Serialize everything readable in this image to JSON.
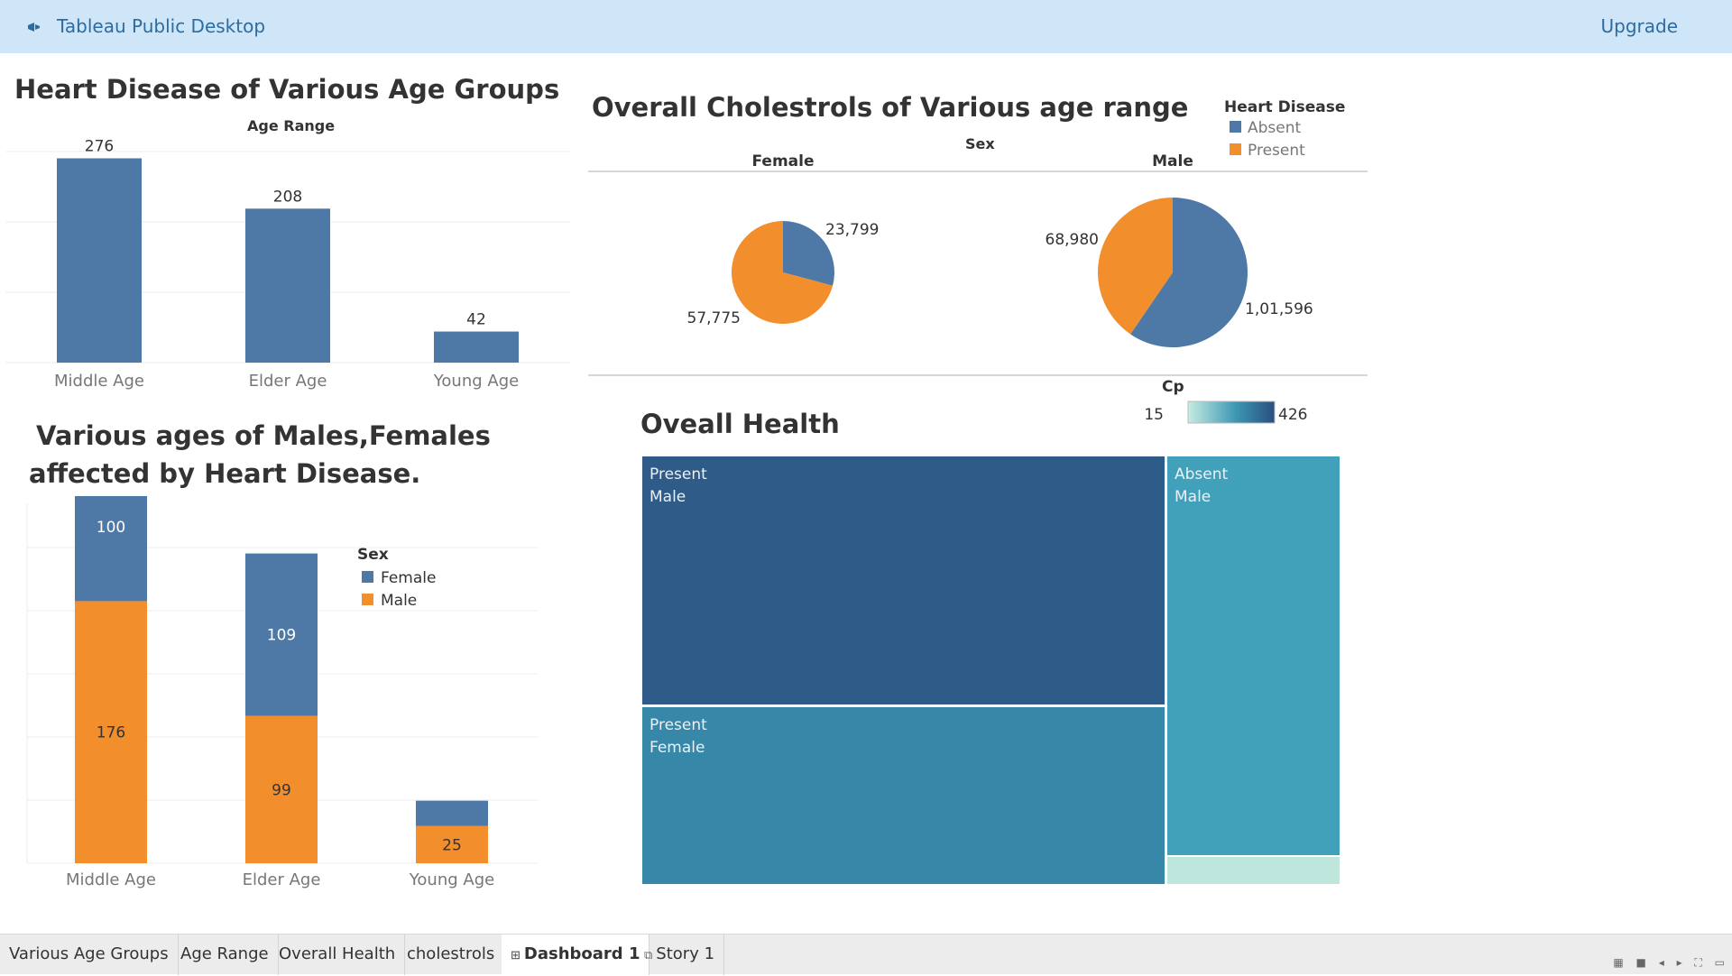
{
  "app": {
    "title": "Tableau Public Desktop",
    "upgrade": "Upgrade",
    "logo_icon": "tableau-logo-icon"
  },
  "colors": {
    "blue": "#4e79a7",
    "orange": "#f28e2b",
    "treemap_dark": "#2e5b87",
    "treemap_mid": "#3787a8",
    "treemap_light": "#42a1ba",
    "treemap_pale": "#bfe6dc"
  },
  "chart1": {
    "title": "Heart Disease of Various Age Groups",
    "axis_caption": "Age Range"
  },
  "chart2": {
    "title_line1": "Various ages of Males,Females",
    "title_line2": "affected by Heart Disease.",
    "legend_title": "Sex"
  },
  "chart3": {
    "title": "Overall Cholestrols of Various age range",
    "sex_caption": "Sex",
    "legend_title": "Heart Disease"
  },
  "chart4": {
    "title": "Oveall Health",
    "legend_title": "Cp",
    "legend_min": "15",
    "legend_max": "426"
  },
  "chart_data": [
    {
      "type": "bar",
      "title": "Heart Disease of Various Age Groups",
      "xlabel": "Age Range",
      "categories": [
        "Middle Age",
        "Elder Age",
        "Young Age"
      ],
      "values": [
        276,
        208,
        42
      ],
      "value_labels": [
        "276",
        "208",
        "42"
      ],
      "ylim": [
        0,
        290
      ],
      "grid": true
    },
    {
      "type": "bar",
      "stacked": true,
      "title": "Various ages of Males,Females affected by Heart Disease.",
      "categories": [
        "Middle Age",
        "Elder Age",
        "Young Age"
      ],
      "series": [
        {
          "name": "Male",
          "values": [
            176,
            99,
            25
          ],
          "labels": [
            "176",
            "99",
            "25"
          ]
        },
        {
          "name": "Female",
          "values": [
            100,
            109,
            17
          ],
          "labels": [
            "100",
            "109",
            ""
          ]
        }
      ],
      "ylim": [
        0,
        290
      ],
      "legend": {
        "title": "Sex",
        "position": "top-right",
        "items": [
          "Female",
          "Male"
        ]
      },
      "grid": true
    },
    {
      "type": "pie",
      "title": "Overall Cholestrols of Various age range",
      "facet_label": "Sex",
      "legend": {
        "title": "Heart Disease",
        "items": [
          "Absent",
          "Present"
        ],
        "position": "top-right"
      },
      "pies": [
        {
          "name": "Female",
          "slices": [
            {
              "label": "Absent",
              "value": 23799,
              "text": "23,799"
            },
            {
              "label": "Present",
              "value": 57775,
              "text": "57,775"
            }
          ]
        },
        {
          "name": "Male",
          "slices": [
            {
              "label": "Absent",
              "value": 101596,
              "text": "1,01,596"
            },
            {
              "label": "Present",
              "value": 68980,
              "text": "68,980"
            }
          ]
        }
      ]
    },
    {
      "type": "treemap",
      "title": "Oveall Health",
      "color_legend": {
        "title": "Cp",
        "min": 15,
        "max": 426
      },
      "cells": [
        {
          "line1": "Present",
          "line2": "Male",
          "cp": 426
        },
        {
          "line1": "Present",
          "line2": "Female",
          "cp": 300
        },
        {
          "line1": "Absent",
          "line2": "Male",
          "cp": 260
        },
        {
          "line1": "",
          "line2": "",
          "cp": 15
        }
      ]
    }
  ],
  "tabs": [
    {
      "label": "Various Age Groups",
      "icon": ""
    },
    {
      "label": "Age Range",
      "icon": ""
    },
    {
      "label": "Overall Health",
      "icon": ""
    },
    {
      "label": "cholestrols",
      "icon": ""
    },
    {
      "label": "Dashboard 1",
      "icon": "dashboard-icon",
      "glyph": "⊞",
      "active": true
    },
    {
      "label": "Story 1",
      "icon": "story-icon",
      "glyph": "⧉"
    }
  ],
  "status_icons": [
    "grid-view-icon",
    "filmstrip-icon",
    "prev-icon",
    "next-icon",
    "fullscreen-icon",
    "present-icon"
  ]
}
